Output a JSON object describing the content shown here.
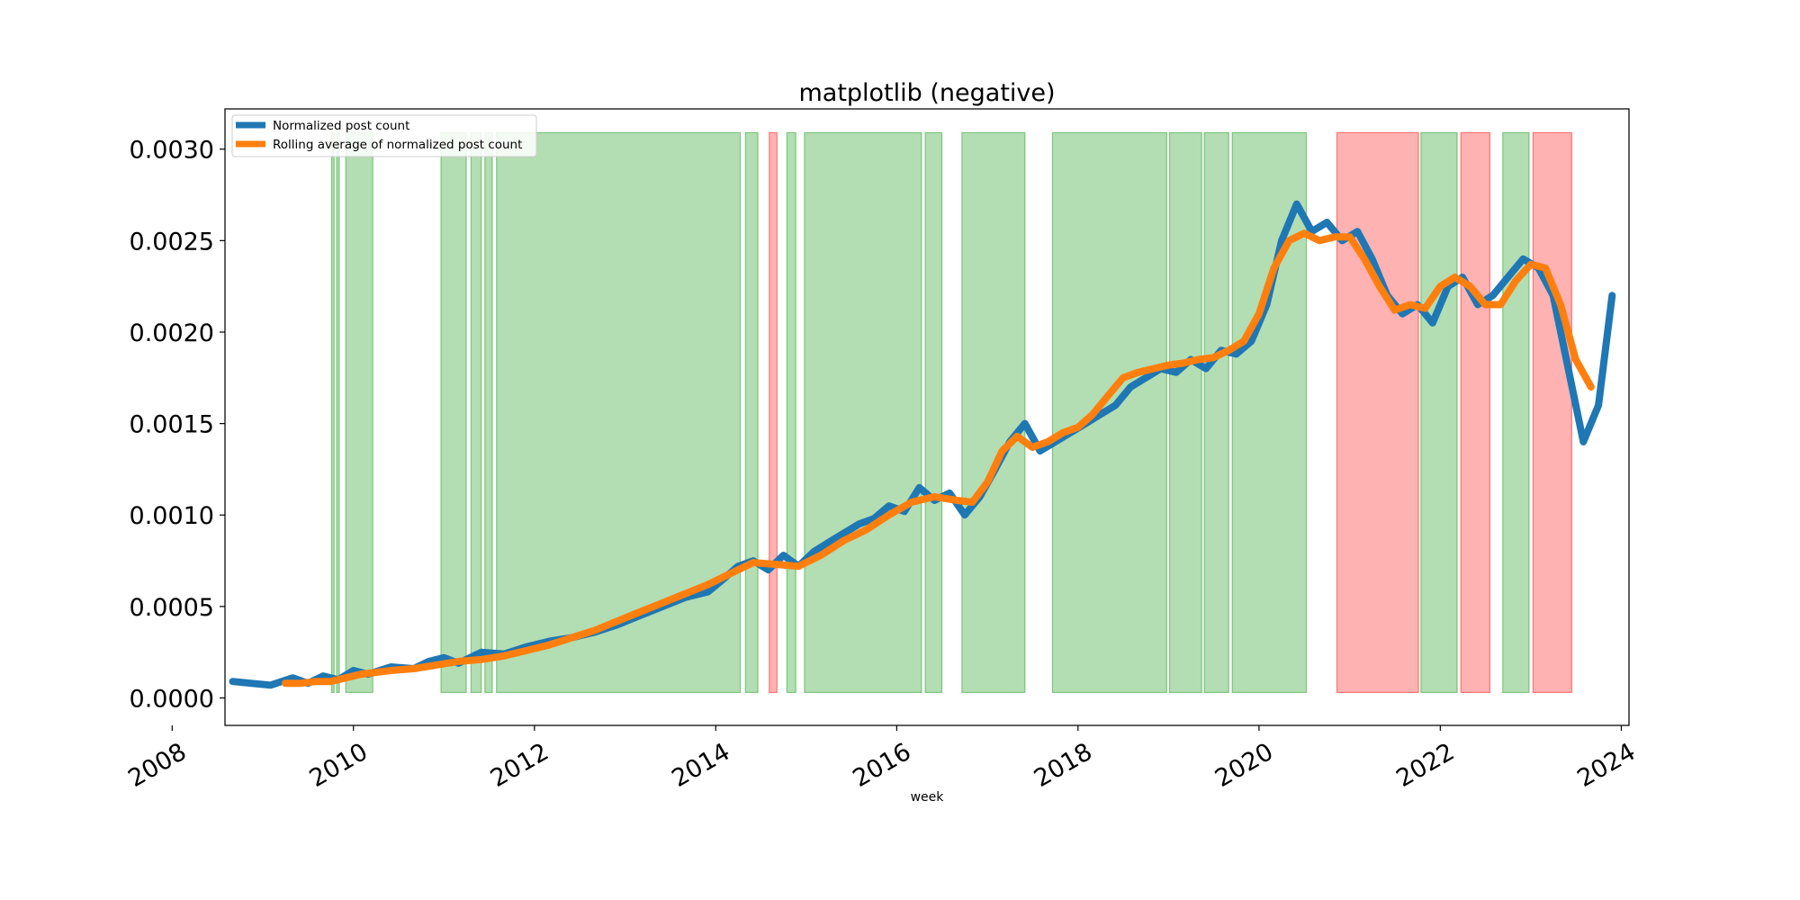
{
  "chart_data": {
    "type": "line",
    "title": "matplotlib (negative)",
    "xlabel": "week",
    "ylabel": "",
    "x_range": [
      "2008-08-01",
      "2024-02-01"
    ],
    "ylim": [
      -0.00015,
      0.00322
    ],
    "x_tick_labels": [
      "2008",
      "2010",
      "2012",
      "2014",
      "2016",
      "2018",
      "2020",
      "2022",
      "2024"
    ],
    "y_tick_labels": [
      "0.0000",
      "0.0005",
      "0.0010",
      "0.0015",
      "0.0020",
      "0.0025",
      "0.0030"
    ],
    "y_ticks": [
      0.0,
      0.0005,
      0.001,
      0.0015,
      0.002,
      0.0025,
      0.003
    ],
    "grid": false,
    "legend_placement": "top-left",
    "colors": {
      "raw": "#1f77b4",
      "rolling": "#ff7f0e",
      "green_span": "#2ca02c",
      "red_span": "#ff0000"
    },
    "shaded_spans": {
      "y_range": [
        3e-05,
        0.00309
      ],
      "green": [
        [
          "2009-10-05",
          "2009-10-15"
        ],
        [
          "2009-10-25",
          "2009-11-05"
        ],
        [
          "2009-12-01",
          "2010-03-20"
        ],
        [
          "2010-12-20",
          "2011-04-01"
        ],
        [
          "2011-04-20",
          "2011-06-01"
        ],
        [
          "2011-06-15",
          "2011-07-15"
        ],
        [
          "2011-08-01",
          "2014-04-10"
        ],
        [
          "2014-05-01",
          "2014-06-20"
        ],
        [
          "2014-10-15",
          "2014-11-20"
        ],
        [
          "2014-12-25",
          "2016-04-10"
        ],
        [
          "2016-04-25",
          "2016-07-01"
        ],
        [
          "2016-09-20",
          "2017-06-01"
        ],
        [
          "2017-09-20",
          "2018-12-25"
        ],
        [
          "2019-01-05",
          "2019-05-15"
        ],
        [
          "2019-05-25",
          "2019-09-01"
        ],
        [
          "2019-09-15",
          "2020-07-10"
        ],
        [
          "2021-10-15",
          "2022-03-10"
        ],
        [
          "2022-09-10",
          "2022-12-25"
        ]
      ],
      "red": [
        [
          "2014-08-05",
          "2014-09-05"
        ],
        [
          "2020-11-10",
          "2021-10-05"
        ],
        [
          "2022-03-25",
          "2022-07-20"
        ],
        [
          "2023-01-10",
          "2023-06-15"
        ]
      ]
    },
    "series": [
      {
        "name": "Normalized post count",
        "line_width": "thick",
        "x": [
          "2008-09-01",
          "2009-02-01",
          "2009-05-01",
          "2009-07-01",
          "2009-09-01",
          "2009-11-01",
          "2010-01-01",
          "2010-03-01",
          "2010-06-01",
          "2010-09-01",
          "2010-11-01",
          "2011-01-01",
          "2011-03-01",
          "2011-06-01",
          "2011-09-01",
          "2011-12-01",
          "2012-03-01",
          "2012-06-01",
          "2012-09-01",
          "2012-12-01",
          "2013-03-01",
          "2013-06-01",
          "2013-09-01",
          "2013-12-01",
          "2014-02-01",
          "2014-04-01",
          "2014-06-01",
          "2014-08-01",
          "2014-10-01",
          "2014-12-01",
          "2015-02-01",
          "2015-04-01",
          "2015-06-01",
          "2015-08-01",
          "2015-10-01",
          "2015-12-01",
          "2016-02-01",
          "2016-04-01",
          "2016-06-01",
          "2016-08-01",
          "2016-10-01",
          "2016-12-01",
          "2017-02-01",
          "2017-04-01",
          "2017-06-01",
          "2017-08-01",
          "2017-10-01",
          "2017-12-01",
          "2018-02-01",
          "2018-04-01",
          "2018-06-01",
          "2018-08-01",
          "2018-10-01",
          "2018-12-01",
          "2019-02-01",
          "2019-04-01",
          "2019-06-01",
          "2019-08-01",
          "2019-10-01",
          "2019-12-01",
          "2020-02-01",
          "2020-04-01",
          "2020-06-01",
          "2020-08-01",
          "2020-10-01",
          "2020-12-01",
          "2021-02-01",
          "2021-04-01",
          "2021-06-01",
          "2021-08-01",
          "2021-10-01",
          "2021-12-01",
          "2022-02-01",
          "2022-04-01",
          "2022-06-01",
          "2022-08-01",
          "2022-10-01",
          "2022-12-01",
          "2023-02-01",
          "2023-04-01",
          "2023-06-01",
          "2023-08-01",
          "2023-10-01",
          "2023-11-25"
        ],
        "y": [
          9e-05,
          7e-05,
          0.00011,
          8e-05,
          0.00012,
          0.0001,
          0.00015,
          0.00013,
          0.00017,
          0.00016,
          0.0002,
          0.00022,
          0.00019,
          0.00025,
          0.00024,
          0.00028,
          0.00031,
          0.00033,
          0.00036,
          0.0004,
          0.00045,
          0.0005,
          0.00055,
          0.00058,
          0.00065,
          0.00072,
          0.00075,
          0.0007,
          0.00078,
          0.00072,
          0.0008,
          0.00085,
          0.0009,
          0.00095,
          0.00098,
          0.00105,
          0.00102,
          0.00115,
          0.00108,
          0.00112,
          0.001,
          0.0011,
          0.00125,
          0.0014,
          0.0015,
          0.00135,
          0.0014,
          0.00145,
          0.0015,
          0.00155,
          0.0016,
          0.0017,
          0.00175,
          0.0018,
          0.00178,
          0.00185,
          0.0018,
          0.0019,
          0.00188,
          0.00195,
          0.00215,
          0.0025,
          0.0027,
          0.00255,
          0.0026,
          0.0025,
          0.00255,
          0.0024,
          0.0022,
          0.0021,
          0.00215,
          0.00205,
          0.00225,
          0.0023,
          0.00215,
          0.0022,
          0.0023,
          0.0024,
          0.00235,
          0.0022,
          0.0018,
          0.0014,
          0.0016,
          0.0022
        ]
      },
      {
        "name": "Rolling average of normalized post count",
        "line_width": "thick",
        "x": [
          "2009-04-01",
          "2009-06-01",
          "2009-08-01",
          "2009-10-01",
          "2009-12-01",
          "2010-02-01",
          "2010-04-01",
          "2010-06-01",
          "2010-09-01",
          "2010-12-01",
          "2011-03-01",
          "2011-06-01",
          "2011-09-01",
          "2011-12-01",
          "2012-03-01",
          "2012-06-01",
          "2012-09-01",
          "2012-12-01",
          "2013-03-01",
          "2013-06-01",
          "2013-09-01",
          "2013-12-01",
          "2014-03-01",
          "2014-06-01",
          "2014-09-01",
          "2014-12-01",
          "2015-03-01",
          "2015-06-01",
          "2015-09-01",
          "2015-12-01",
          "2016-03-01",
          "2016-06-01",
          "2016-09-01",
          "2016-11-01",
          "2017-01-01",
          "2017-03-01",
          "2017-05-01",
          "2017-07-01",
          "2017-09-01",
          "2017-11-01",
          "2018-01-01",
          "2018-03-01",
          "2018-05-01",
          "2018-07-01",
          "2018-09-01",
          "2018-11-01",
          "2019-01-01",
          "2019-03-01",
          "2019-05-01",
          "2019-07-01",
          "2019-09-01",
          "2019-11-01",
          "2020-01-01",
          "2020-03-01",
          "2020-05-01",
          "2020-07-01",
          "2020-09-01",
          "2020-11-01",
          "2021-01-01",
          "2021-03-01",
          "2021-05-01",
          "2021-07-01",
          "2021-09-01",
          "2021-11-01",
          "2022-01-01",
          "2022-03-01",
          "2022-05-01",
          "2022-07-01",
          "2022-09-01",
          "2022-11-01",
          "2023-01-01",
          "2023-03-01",
          "2023-05-01",
          "2023-07-01",
          "2023-09-01"
        ],
        "y": [
          8e-05,
          8e-05,
          9e-05,
          9e-05,
          0.00011,
          0.00013,
          0.00014,
          0.00015,
          0.00016,
          0.00018,
          0.0002,
          0.00021,
          0.00023,
          0.00026,
          0.00029,
          0.00033,
          0.00037,
          0.00042,
          0.00047,
          0.00052,
          0.00057,
          0.00062,
          0.00068,
          0.00074,
          0.00073,
          0.00072,
          0.00078,
          0.00086,
          0.00092,
          0.001,
          0.00107,
          0.0011,
          0.00108,
          0.00107,
          0.00118,
          0.00135,
          0.00143,
          0.00137,
          0.0014,
          0.00145,
          0.00148,
          0.00155,
          0.00165,
          0.00175,
          0.00178,
          0.0018,
          0.00182,
          0.00183,
          0.00185,
          0.00186,
          0.0019,
          0.00195,
          0.0021,
          0.00235,
          0.0025,
          0.00254,
          0.0025,
          0.00252,
          0.00252,
          0.0024,
          0.00225,
          0.00212,
          0.00215,
          0.00213,
          0.00225,
          0.0023,
          0.00225,
          0.00215,
          0.00215,
          0.00228,
          0.00237,
          0.00235,
          0.00215,
          0.00185,
          0.0017
        ]
      }
    ]
  }
}
